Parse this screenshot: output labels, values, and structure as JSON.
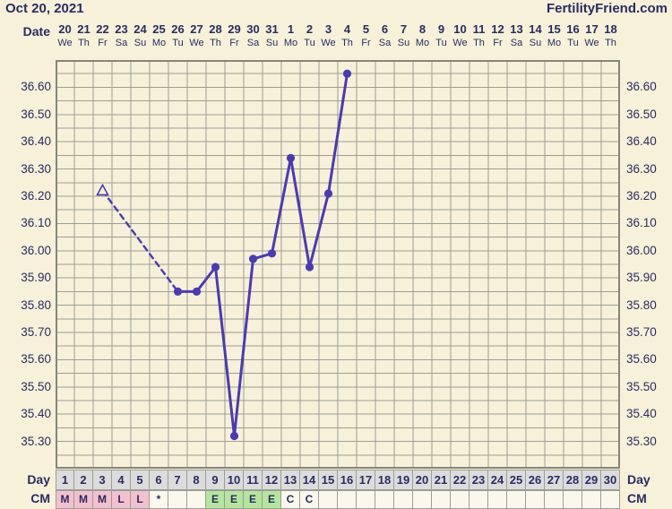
{
  "header": {
    "date": "Oct 20, 2021",
    "brand": "FertilityFriend.com"
  },
  "axis": {
    "date_row_label": "Date",
    "day_row_label": "Day",
    "cm_row_label": "CM",
    "dates": [
      "20",
      "21",
      "22",
      "23",
      "24",
      "25",
      "26",
      "27",
      "28",
      "29",
      "30",
      "31",
      "1",
      "2",
      "3",
      "4",
      "5",
      "6",
      "7",
      "8",
      "9",
      "10",
      "11",
      "12",
      "13",
      "14",
      "15",
      "16",
      "17",
      "18"
    ],
    "weekdays": [
      "We",
      "Th",
      "Fr",
      "Sa",
      "Su",
      "Mo",
      "Tu",
      "We",
      "Th",
      "Fr",
      "Sa",
      "Su",
      "Mo",
      "Tu",
      "We",
      "Th",
      "Fr",
      "Sa",
      "Su",
      "Mo",
      "Tu",
      "We",
      "Th",
      "Fr",
      "Sa",
      "Su",
      "Mo",
      "Tu",
      "We",
      "Th"
    ],
    "day_numbers": [
      "1",
      "2",
      "3",
      "4",
      "5",
      "6",
      "7",
      "8",
      "9",
      "10",
      "11",
      "12",
      "13",
      "14",
      "15",
      "16",
      "17",
      "18",
      "19",
      "20",
      "21",
      "22",
      "23",
      "24",
      "25",
      "26",
      "27",
      "28",
      "29",
      "30"
    ],
    "temp_labels": [
      "36.60",
      "36.50",
      "36.40",
      "36.30",
      "36.20",
      "36.10",
      "36.00",
      "35.90",
      "35.80",
      "35.70",
      "35.60",
      "35.50",
      "35.40",
      "35.30"
    ]
  },
  "chart_data": {
    "type": "line",
    "x_axis": "cycle day (1-30)",
    "y_axis": "basal body temperature",
    "ylim": [
      35.2,
      36.7
    ],
    "y_gridline_step": 0.05,
    "y_label_step": 0.1,
    "grid": true,
    "series": [
      {
        "name": "temperature",
        "points": [
          {
            "day": 3,
            "temp": 36.22,
            "marker": "triangle-open",
            "link": "none"
          },
          {
            "day": 7,
            "temp": 35.85,
            "marker": "dot",
            "link": "dashed"
          },
          {
            "day": 8,
            "temp": 35.85,
            "marker": "dot",
            "link": "solid"
          },
          {
            "day": 9,
            "temp": 35.94,
            "marker": "dot",
            "link": "solid"
          },
          {
            "day": 10,
            "temp": 35.32,
            "marker": "dot",
            "link": "solid"
          },
          {
            "day": 11,
            "temp": 35.97,
            "marker": "dot",
            "link": "solid"
          },
          {
            "day": 12,
            "temp": 35.99,
            "marker": "dot",
            "link": "solid"
          },
          {
            "day": 13,
            "temp": 36.34,
            "marker": "dot",
            "link": "solid"
          },
          {
            "day": 14,
            "temp": 35.94,
            "marker": "dot",
            "link": "solid"
          },
          {
            "day": 15,
            "temp": 36.21,
            "marker": "dot",
            "link": "solid"
          },
          {
            "day": 16,
            "temp": 36.65,
            "marker": "dot",
            "link": "solid"
          }
        ]
      }
    ]
  },
  "cm_row": {
    "cells": [
      {
        "day": "1",
        "value": "M",
        "tint": "pink"
      },
      {
        "day": "2",
        "value": "M",
        "tint": "pink"
      },
      {
        "day": "3",
        "value": "M",
        "tint": "pink"
      },
      {
        "day": "4",
        "value": "L",
        "tint": "pink"
      },
      {
        "day": "5",
        "value": "L",
        "tint": "pink"
      },
      {
        "day": "6",
        "value": "*",
        "tint": "plain"
      },
      {
        "day": "7",
        "value": "",
        "tint": "plain"
      },
      {
        "day": "8",
        "value": "",
        "tint": "plain"
      },
      {
        "day": "9",
        "value": "E",
        "tint": "green"
      },
      {
        "day": "10",
        "value": "E",
        "tint": "green"
      },
      {
        "day": "11",
        "value": "E",
        "tint": "green"
      },
      {
        "day": "12",
        "value": "E",
        "tint": "green"
      },
      {
        "day": "13",
        "value": "C",
        "tint": "plain"
      },
      {
        "day": "14",
        "value": "C",
        "tint": "plain"
      },
      {
        "day": "15",
        "value": "",
        "tint": "plain"
      },
      {
        "day": "16",
        "value": "",
        "tint": "plain"
      },
      {
        "day": "17",
        "value": "",
        "tint": "plain"
      },
      {
        "day": "18",
        "value": "",
        "tint": "plain"
      },
      {
        "day": "19",
        "value": "",
        "tint": "plain"
      },
      {
        "day": "20",
        "value": "",
        "tint": "plain"
      },
      {
        "day": "21",
        "value": "",
        "tint": "plain"
      },
      {
        "day": "22",
        "value": "",
        "tint": "plain"
      },
      {
        "day": "23",
        "value": "",
        "tint": "plain"
      },
      {
        "day": "24",
        "value": "",
        "tint": "plain"
      },
      {
        "day": "25",
        "value": "",
        "tint": "plain"
      },
      {
        "day": "26",
        "value": "",
        "tint": "plain"
      },
      {
        "day": "27",
        "value": "",
        "tint": "plain"
      },
      {
        "day": "28",
        "value": "",
        "tint": "plain"
      },
      {
        "day": "29",
        "value": "",
        "tint": "plain"
      },
      {
        "day": "30",
        "value": "",
        "tint": "plain"
      }
    ]
  },
  "colors": {
    "page_bg": "#f6f1d8",
    "navy_text": "#2b2b63",
    "line": "#4a3ab5",
    "gridline": "#9d9d95",
    "chart_border": "#85857c",
    "day_cell_bg": "#dcdcdc",
    "cm_pink": "#f3c1ce",
    "cm_green": "#b4e69d",
    "cm_plain": "#faf8ec"
  }
}
